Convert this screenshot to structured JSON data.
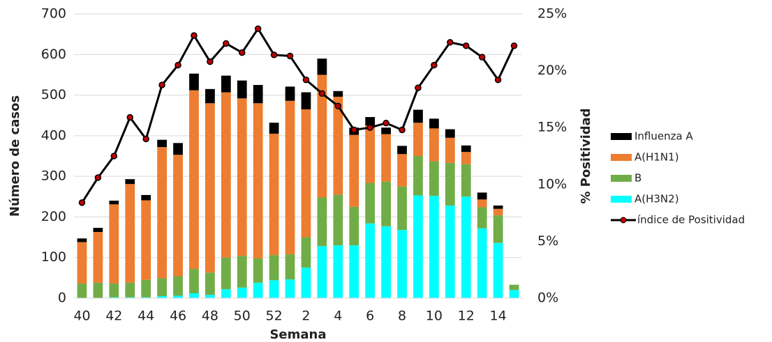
{
  "chart_data": {
    "type": "bar",
    "x_label": "Semana",
    "y_label": "Número de casos",
    "y2_label": "% Positividad",
    "categories": [
      "40",
      null,
      "42",
      null,
      "44",
      null,
      "46",
      null,
      "48",
      null,
      "50",
      null,
      "52",
      null,
      "2",
      null,
      "4",
      null,
      "6",
      null,
      "8",
      null,
      "10",
      null,
      "12",
      null,
      "14",
      null
    ],
    "series": [
      {
        "name": "Influenza A",
        "color": "#000000",
        "values": [
          9,
          10,
          9,
          12,
          13,
          18,
          29,
          41,
          35,
          41,
          44,
          45,
          27,
          35,
          42,
          40,
          14,
          18,
          21,
          16,
          20,
          32,
          24,
          21,
          16,
          17,
          8,
          0
        ]
      },
      {
        "name": "A(H1N1)",
        "color": "#ed7d31",
        "values": [
          102,
          125,
          195,
          243,
          196,
          323,
          299,
          440,
          417,
          407,
          388,
          382,
          299,
          378,
          315,
          302,
          241,
          177,
          141,
          117,
          80,
          82,
          81,
          62,
          30,
          19,
          16,
          0
        ]
      },
      {
        "name": "B",
        "color": "#70ad47",
        "values": [
          36,
          38,
          34,
          36,
          43,
          44,
          48,
          60,
          55,
          78,
          78,
          60,
          62,
          62,
          75,
          120,
          125,
          95,
          100,
          110,
          107,
          97,
          85,
          105,
          80,
          52,
          68,
          13
        ]
      },
      {
        "name": "A(H3N2)",
        "color": "#00ffff",
        "values": [
          0,
          0,
          2,
          2,
          2,
          5,
          6,
          12,
          8,
          22,
          26,
          38,
          44,
          46,
          75,
          128,
          130,
          130,
          184,
          177,
          168,
          253,
          252,
          228,
          250,
          172,
          136,
          20
        ]
      },
      {
        "name": "índice de Positividad",
        "type": "line",
        "axis": "y2",
        "color": "#000000",
        "marker_color": "#c00000",
        "values": [
          8.4,
          10.6,
          12.5,
          15.9,
          14.0,
          18.75,
          20.5,
          23.1,
          20.8,
          22.4,
          21.6,
          23.7,
          21.4,
          21.3,
          19.2,
          18.0,
          16.9,
          14.8,
          15.0,
          15.4,
          14.8,
          18.5,
          20.5,
          22.5,
          22.2,
          21.2,
          19.2,
          22.2
        ]
      }
    ],
    "stacked": true,
    "ylim": [
      0,
      700
    ],
    "yticks": [
      0,
      100,
      200,
      300,
      400,
      500,
      600,
      700
    ],
    "y2lim": [
      0,
      25
    ],
    "y2ticks": [
      {
        "value": 0,
        "label": "0%"
      },
      {
        "value": 5,
        "label": "5%"
      },
      {
        "value": 10,
        "label": "10%"
      },
      {
        "value": 15,
        "label": "15%"
      },
      {
        "value": 20,
        "label": "20%"
      },
      {
        "value": 25,
        "label": "25%"
      }
    ],
    "grid": true,
    "legend": "right"
  }
}
